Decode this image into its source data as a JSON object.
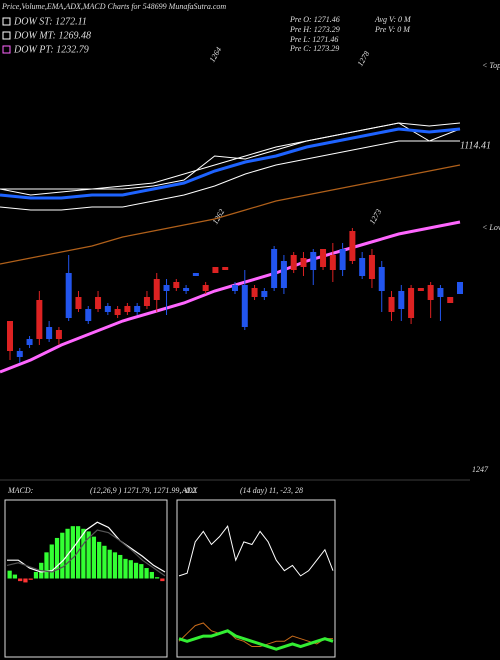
{
  "chart_data": [
    {
      "type": "candlestick",
      "title": "Price,Volume,EMA,ADX,MACD Charts for 548699 MunafaSutra.com",
      "legend": [
        {
          "label": "DOW ST: 1272.11",
          "color": "#ffffff"
        },
        {
          "label": "DOW MT: 1269.48",
          "color": "#ffffff"
        },
        {
          "label": "DOW PT: 1232.79",
          "color": "#ff66ff"
        }
      ],
      "info": [
        "Pre   O: 1271.46",
        "Pre   H: 1273.29",
        "Pre   L: 1271.46",
        "Pre   C: 1273.29",
        "Avg V: 0  M",
        "Pre   V: 0  M"
      ],
      "annotations": [
        "1264",
        "1278",
        "1262",
        "1273",
        "1114.41",
        "1247",
        "< Tops",
        "< Lows"
      ],
      "up_color": "#2255ee",
      "down_color": "#dd2222",
      "ylim": [
        1140,
        1300
      ],
      "open": [
        1193,
        1181,
        1185,
        1200,
        1187,
        1190,
        1194,
        1201,
        1193,
        1201,
        1196,
        1197,
        1198,
        1196,
        1201,
        1207,
        1203,
        1206,
        1203,
        1208,
        1205,
        1211,
        1211,
        1203,
        1191,
        1204,
        1201,
        1204,
        1204,
        1215,
        1214,
        1210,
        1217,
        1215,
        1210,
        1223,
        1208,
        1215,
        1203,
        1201,
        1197,
        1204,
        1204,
        1205,
        1201,
        1201,
        1202
      ],
      "close": [
        1183,
        1183,
        1187,
        1187,
        1191,
        1187,
        1209,
        1197,
        1197,
        1197,
        1198,
        1195,
        1196,
        1198,
        1198,
        1200,
        1205,
        1204,
        1204,
        1209,
        1203,
        1209,
        1210,
        1205,
        1205,
        1201,
        1203,
        1217,
        1213,
        1210,
        1211,
        1216,
        1211,
        1210,
        1217,
        1213,
        1214,
        1207,
        1211,
        1196,
        1203,
        1194,
        1203,
        1200,
        1204,
        1199,
        1206
      ],
      "high": [
        1193,
        1184,
        1188,
        1203,
        1193,
        1191,
        1215,
        1203,
        1198,
        1203,
        1199,
        1198,
        1199,
        1199,
        1203,
        1209,
        1207,
        1207,
        1205,
        1209,
        1206,
        1211,
        1211,
        1206,
        1210,
        1205,
        1204,
        1218,
        1215,
        1216,
        1216,
        1217,
        1217,
        1219,
        1219,
        1224,
        1216,
        1217,
        1213,
        1203,
        1205,
        1205,
        1204,
        1206,
        1205,
        1201,
        1206
      ],
      "low": [
        1180,
        1179,
        1184,
        1185,
        1186,
        1185,
        1193,
        1196,
        1192,
        1196,
        1195,
        1194,
        1195,
        1195,
        1197,
        1196,
        1195,
        1203,
        1202,
        1208,
        1202,
        1209,
        1210,
        1202,
        1190,
        1200,
        1200,
        1203,
        1202,
        1209,
        1208,
        1205,
        1210,
        1206,
        1208,
        1212,
        1207,
        1204,
        1196,
        1193,
        1193,
        1192,
        1203,
        1194,
        1193,
        1199,
        1202
      ],
      "series": [
        {
          "color": "#b0601a",
          "width": 1.2,
          "values": [
            1212,
            1214,
            1216,
            1218,
            1221,
            1223,
            1225,
            1227,
            1230,
            1233,
            1235,
            1237,
            1239,
            1241,
            1243,
            1245
          ]
        },
        {
          "color": "#ffffff",
          "width": 1,
          "values": [
            1237,
            1237,
            1237,
            1237,
            1238,
            1239,
            1242,
            1245,
            1248,
            1251,
            1253,
            1255,
            1257,
            1259,
            1258,
            1259
          ]
        },
        {
          "color": "#ffffff",
          "width": 1,
          "values": [
            1231,
            1230,
            1230,
            1231,
            1231,
            1233,
            1235,
            1238,
            1242,
            1245,
            1247,
            1249,
            1251,
            1253,
            1253,
            1253
          ]
        },
        {
          "color": "#ffffff",
          "width": 1,
          "values": [
            1237,
            1235,
            1236,
            1237,
            1237,
            1238,
            1240,
            1248,
            1247,
            1250,
            1253,
            1255,
            1257,
            1259,
            1253,
            1257
          ]
        },
        {
          "color": "#1e63ff",
          "width": 3,
          "values": [
            1235,
            1234,
            1234,
            1235,
            1235,
            1237,
            1239,
            1243,
            1246,
            1248,
            1251,
            1253,
            1255,
            1257,
            1256,
            1257
          ]
        },
        {
          "color": "#ff66ff",
          "width": 3,
          "values": [
            1176,
            1180,
            1185,
            1189,
            1193,
            1196,
            1199,
            1203,
            1206,
            1209,
            1213,
            1216,
            1219,
            1222,
            1224,
            1226
          ]
        }
      ]
    },
    {
      "type": "macd",
      "label": "MACD:",
      "params": "(12,26,9 ) 1271.79, 1271.99, -0.2",
      "ylim": [
        -6,
        6
      ],
      "bar_color": "#33ff33",
      "neg_color": "#ff3333",
      "bars": [
        0.6,
        0.3,
        -0.2,
        -0.3,
        -0.1,
        0.5,
        1.2,
        2,
        2.6,
        3.1,
        3.5,
        3.8,
        4,
        4,
        3.8,
        3.6,
        3.2,
        2.8,
        2.5,
        2.2,
        2,
        1.8,
        1.5,
        1.4,
        1.2,
        1.1,
        0.8,
        0.5,
        0.1,
        -0.2
      ],
      "series": [
        {
          "color": "#ffffff",
          "values": [
            1.4,
            1.4,
            0.8,
            0.5,
            0.6,
            1.4,
            2.5,
            3.7,
            4.3,
            3.9,
            2.9,
            2.3,
            1.7,
            1,
            0.5
          ]
        },
        {
          "color": "#555555",
          "values": [
            1,
            1.2,
            0.9,
            0.6,
            0.5,
            0.9,
            1.7,
            2.9,
            3.7,
            3.5,
            2.9,
            2.2,
            1.4,
            0.8,
            0.2
          ]
        }
      ]
    },
    {
      "type": "adx",
      "label": "ADX",
      "params": "(14 day) 11, -23, 28",
      "ylim": [
        0,
        60
      ],
      "series": [
        {
          "color": "#ffffff",
          "width": 1,
          "values": [
            31,
            32,
            44,
            48,
            43,
            46,
            50,
            37,
            44,
            43,
            48,
            44,
            37,
            33,
            35,
            31,
            33,
            37,
            41,
            33
          ]
        },
        {
          "color": "#c86b1a",
          "width": 1,
          "values": [
            6,
            9,
            12,
            13,
            10,
            9,
            10,
            7,
            6,
            4,
            4,
            5,
            6,
            6,
            8,
            7,
            6,
            5,
            7,
            7
          ]
        },
        {
          "color": "#33ee33",
          "width": 3,
          "values": [
            7,
            6,
            7,
            8,
            8,
            9,
            10,
            8,
            7,
            6,
            5,
            4,
            3,
            4,
            5,
            4,
            5,
            6,
            7,
            6
          ]
        }
      ]
    }
  ]
}
